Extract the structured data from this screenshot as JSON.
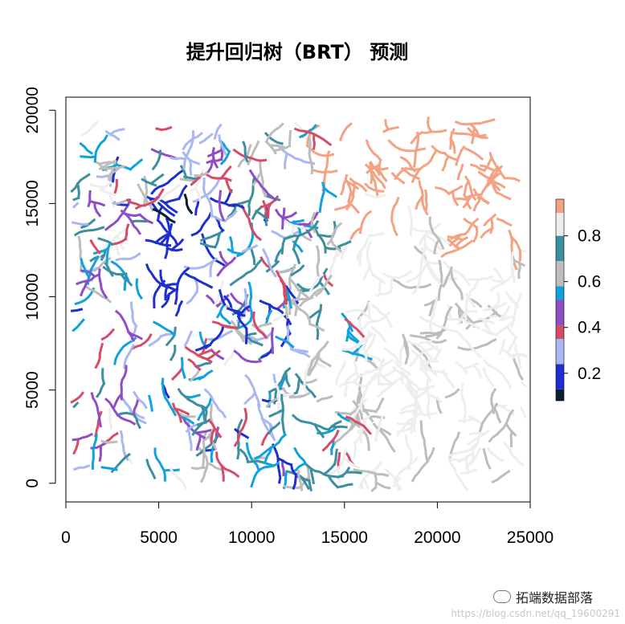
{
  "chart_data": {
    "type": "raster-map",
    "title": "提升回归树（BRT） 预测",
    "xlim": [
      0,
      25000
    ],
    "ylim": [
      -1000,
      20700
    ],
    "x_ticks": [
      0,
      5000,
      10000,
      15000,
      20000,
      25000
    ],
    "y_ticks": [
      0,
      5000,
      10000,
      15000,
      20000
    ],
    "legend": {
      "placement": "right",
      "range": [
        0.08,
        0.96
      ],
      "ticks": [
        0.2,
        0.4,
        0.6,
        0.8
      ],
      "bins": [
        {
          "from": 0.08,
          "to": 0.13,
          "color": "#0b1f33"
        },
        {
          "from": 0.13,
          "to": 0.24,
          "color": "#1e2fd0"
        },
        {
          "from": 0.24,
          "to": 0.35,
          "color": "#a9b7f2"
        },
        {
          "from": 0.35,
          "to": 0.41,
          "color": "#d44c68"
        },
        {
          "from": 0.41,
          "to": 0.52,
          "color": "#8f4ec3"
        },
        {
          "from": 0.52,
          "to": 0.58,
          "color": "#10a2dc"
        },
        {
          "from": 0.58,
          "to": 0.69,
          "color": "#bdbdbd"
        },
        {
          "from": 0.69,
          "to": 0.8,
          "color": "#3b8f9e"
        },
        {
          "from": 0.8,
          "to": 0.9,
          "color": "#eeeeee"
        },
        {
          "from": 0.9,
          "to": 0.96,
          "color": "#f3a283"
        }
      ]
    },
    "regions": [
      {
        "name": "dark-blue core",
        "x": [
          4000,
          8500
        ],
        "y": [
          8500,
          15500
        ],
        "colors": [
          "#1e2fd0",
          "#0b1f33",
          "#a9b7f2"
        ]
      },
      {
        "name": "western mixed",
        "x": [
          300,
          4500
        ],
        "y": [
          1000,
          19000
        ],
        "colors": [
          "#3b8f9e",
          "#10a2dc",
          "#a9b7f2",
          "#d44c68",
          "#8f4ec3",
          "#bdbdbd"
        ]
      },
      {
        "name": "central mixed",
        "x": [
          8000,
          15000
        ],
        "y": [
          0,
          19000
        ],
        "colors": [
          "#10a2dc",
          "#d44c68",
          "#3b8f9e",
          "#8f4ec3",
          "#bdbdbd"
        ]
      },
      {
        "name": "eastern high",
        "x": [
          15000,
          25000
        ],
        "y": [
          0,
          15000
        ],
        "colors": [
          "#eeeeee",
          "#bdbdbd"
        ]
      },
      {
        "name": "north-east salmon",
        "x": [
          13500,
          25000
        ],
        "y": [
          10000,
          19500
        ],
        "colors": [
          "#f3a283"
        ]
      }
    ]
  },
  "watermark": {
    "text": "拓端数据部落",
    "url": "https://blog.csdn.net/qq_19600291"
  }
}
